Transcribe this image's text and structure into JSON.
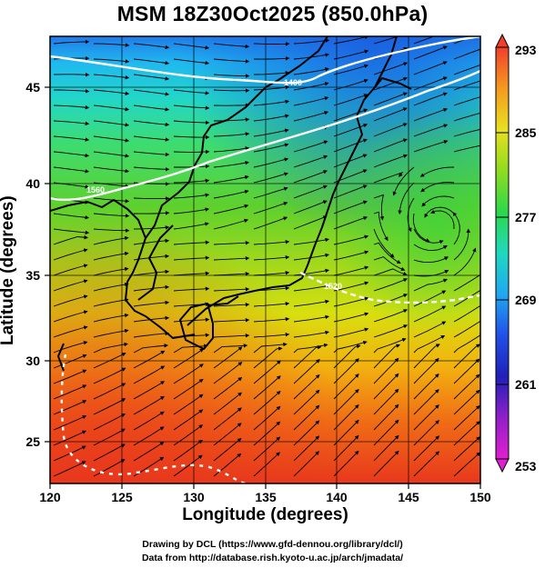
{
  "title": "MSM 18Z30Oct2025 (850.0hPa)",
  "x_axis": {
    "label": "Longitude (degrees)",
    "range": [
      120,
      150
    ],
    "ticks": [
      "120",
      "125",
      "130",
      "135",
      "140",
      "145",
      "150"
    ]
  },
  "y_axis": {
    "label": "Latitude  (degrees)",
    "range": [
      22.5,
      47.5
    ],
    "ticks": [
      "25",
      "30",
      "35",
      "40",
      "45"
    ]
  },
  "colorbar": {
    "range": [
      253,
      293
    ],
    "ticks": [
      "293",
      "285",
      "277",
      "269",
      "261",
      "253"
    ]
  },
  "contour_labels": [
    "1400",
    "1560",
    "1520"
  ],
  "credits": {
    "line1": "Drawing by DCL (https://www.gfd-dennou.org/library/dcl/)",
    "line2": "Data from http://database.rish.kyoto-u.ac.jp/arch/jmadata/"
  }
}
